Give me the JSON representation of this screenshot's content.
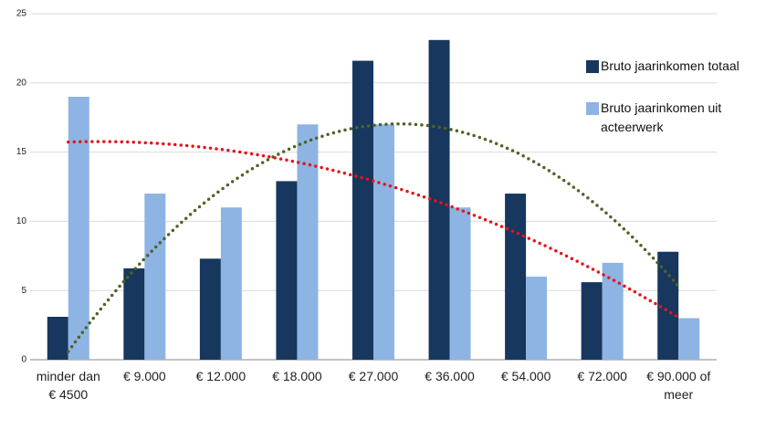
{
  "chart_data": {
    "type": "bar",
    "categories": [
      "minder dan € 4500",
      "€ 9.000",
      "€ 12.000",
      "€ 18.000",
      "€ 27.000",
      "€ 36.000",
      "€ 54.000",
      "€ 72.000",
      "€ 90.000 of meer"
    ],
    "series": [
      {
        "name": "Bruto jaarinkomen totaal",
        "color": "#17375e",
        "trend_color": "#4f6228",
        "values": [
          3.1,
          6.6,
          7.3,
          12.9,
          21.6,
          23.1,
          12,
          5.6,
          7.8
        ]
      },
      {
        "name": "Bruto jaarinkomen uit acteerwerk",
        "color": "#8db4e2",
        "trend_color": "#e8141b",
        "values": [
          19,
          12,
          11,
          17,
          17,
          11,
          6,
          7,
          3
        ]
      }
    ],
    "ylim": [
      0,
      25
    ],
    "yticks": [
      0,
      5,
      10,
      15,
      20,
      25
    ],
    "grid": true
  }
}
